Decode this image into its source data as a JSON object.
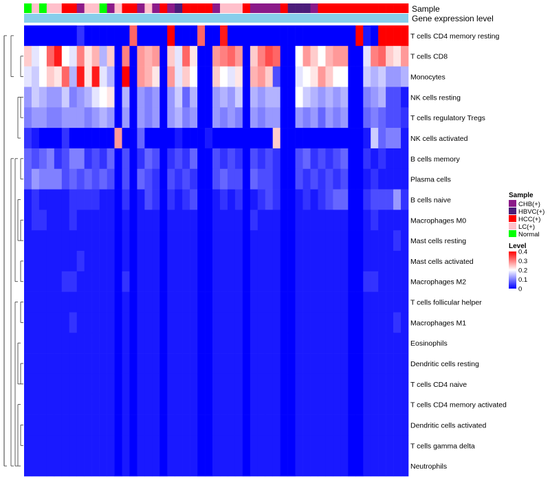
{
  "chart_data": {
    "type": "heatmap",
    "title": "",
    "n_samples": 51,
    "annotation_tracks": [
      {
        "name": "Sample",
        "values": [
          "Normal",
          "LC(+)",
          "Normal",
          "LC(+)",
          "LC(+)",
          "HCC(+)",
          "HCC(+)",
          "CHB(+)",
          "LC(+)",
          "LC(+)",
          "Normal",
          "CHB(+)",
          "LC(+)",
          "HCC(+)",
          "HCC(+)",
          "CHB(+)",
          "LC(+)",
          "CHB(+)",
          "HCC(+)",
          "CHB(+)",
          "HBVC(+)",
          "HCC(+)",
          "HCC(+)",
          "HCC(+)",
          "HCC(+)",
          "CHB(+)",
          "LC(+)",
          "LC(+)",
          "LC(+)",
          "HCC(+)",
          "CHB(+)",
          "CHB(+)",
          "CHB(+)",
          "CHB(+)",
          "HCC(+)",
          "HBVC(+)",
          "HBVC(+)",
          "HBVC(+)",
          "CHB(+)",
          "HCC(+)",
          "HCC(+)",
          "HCC(+)",
          "HCC(+)",
          "HCC(+)",
          "HCC(+)",
          "HCC(+)",
          "HCC(+)",
          "HCC(+)",
          "HCC(+)",
          "HCC(+)",
          "HCC(+)"
        ]
      },
      {
        "name": "Gene expression level",
        "values": "uniform"
      }
    ],
    "rows": [
      "T cells CD4 memory resting",
      "T cells CD8",
      "Monocytes",
      "NK cells resting",
      "T cells regulatory  Tregs",
      "NK cells activated",
      "B cells memory",
      "Plasma cells",
      "B cells naive",
      "Macrophages M0",
      "Mast cells resting",
      "Mast cells activated",
      "Macrophages M2",
      "T cells follicular helper",
      "Macrophages M1",
      "Eosinophils",
      "Dendritic cells resting",
      "T cells CD4 naive",
      "T cells CD4 memory activated",
      "Dendritic cells activated",
      "T cells gamma delta",
      "Neutrophils"
    ],
    "values": [
      [
        0,
        0,
        0,
        0,
        0,
        0,
        0,
        0.04,
        0,
        0,
        0,
        0,
        0,
        0,
        0.32,
        0,
        0,
        0,
        0,
        0.4,
        0,
        0,
        0,
        0.32,
        0,
        0,
        0.38,
        0,
        0,
        0,
        0,
        0,
        0,
        0,
        0,
        0,
        0,
        0,
        0,
        0,
        0,
        0,
        0,
        0,
        0.4,
        0.02,
        0,
        0.4,
        0.4,
        0.4,
        0.4
      ],
      [
        0.24,
        0.18,
        0.2,
        0.32,
        0.38,
        0.2,
        0.18,
        0.3,
        0.22,
        0.26,
        0.14,
        0.24,
        0,
        0.3,
        0,
        0.28,
        0.26,
        0.28,
        0,
        0.24,
        0.18,
        0.32,
        0.22,
        0,
        0,
        0.28,
        0.3,
        0.32,
        0.28,
        0,
        0.24,
        0.3,
        0.34,
        0.32,
        0,
        0,
        0.2,
        0.28,
        0.24,
        0.2,
        0.26,
        0.28,
        0.28,
        0,
        0,
        0.18,
        0.3,
        0.32,
        0.24,
        0.22,
        0.28
      ],
      [
        0.18,
        0.16,
        0.2,
        0.24,
        0.22,
        0.32,
        0.14,
        0.38,
        0.22,
        0.38,
        0.18,
        0.14,
        0,
        0.42,
        0,
        0.28,
        0.26,
        0.22,
        0,
        0.28,
        0.18,
        0.24,
        0.2,
        0,
        0,
        0.24,
        0.2,
        0.18,
        0.22,
        0,
        0.26,
        0.28,
        0.24,
        0.06,
        0,
        0,
        0.18,
        0.2,
        0.22,
        0.28,
        0.24,
        0.2,
        0.2,
        0,
        0,
        0.16,
        0.14,
        0.16,
        0.12,
        0.12,
        0.14
      ],
      [
        0.12,
        0.16,
        0.14,
        0.12,
        0.12,
        0.16,
        0.1,
        0.12,
        0.14,
        0.18,
        0.2,
        0.22,
        0,
        0.14,
        0,
        0.12,
        0.1,
        0.12,
        0,
        0.12,
        0.16,
        0.08,
        0.14,
        0,
        0,
        0.12,
        0.14,
        0.12,
        0.16,
        0,
        0.14,
        0.12,
        0.14,
        0.14,
        0,
        0,
        0.2,
        0.16,
        0.14,
        0.12,
        0.14,
        0.12,
        0.14,
        0,
        0,
        0.1,
        0.12,
        0.14,
        0.06,
        0.06,
        0.02
      ],
      [
        0.1,
        0.12,
        0.12,
        0.1,
        0.1,
        0.12,
        0.12,
        0.12,
        0.1,
        0.12,
        0.14,
        0.12,
        0,
        0.12,
        0,
        0.12,
        0.1,
        0.12,
        0,
        0.12,
        0.14,
        0.1,
        0.12,
        0,
        0,
        0.12,
        0.1,
        0.12,
        0.1,
        0,
        0.12,
        0.1,
        0.12,
        0.12,
        0,
        0,
        0.12,
        0.1,
        0.12,
        0.08,
        0.12,
        0.1,
        0.12,
        0,
        0,
        0.08,
        0.1,
        0.08,
        0.06,
        0.06,
        0.04
      ],
      [
        0.04,
        0.02,
        0,
        0,
        0,
        0.04,
        0,
        0,
        0,
        0,
        0,
        0,
        0.28,
        0,
        0,
        0.08,
        0,
        0,
        0,
        0,
        0.02,
        0,
        0,
        0,
        0.02,
        0,
        0,
        0,
        0,
        0,
        0,
        0,
        0,
        0.24,
        0,
        0,
        0,
        0,
        0,
        0,
        0,
        0,
        0,
        0,
        0,
        0.02,
        0.16,
        0.08,
        0.1,
        0.1,
        0.02
      ],
      [
        0.08,
        0.06,
        0.08,
        0.1,
        0.04,
        0.06,
        0.1,
        0.1,
        0.04,
        0.06,
        0.04,
        0.08,
        0,
        0.06,
        0,
        0.04,
        0.08,
        0.06,
        0,
        0.04,
        0.06,
        0.04,
        0.08,
        0,
        0,
        0.06,
        0.04,
        0.06,
        0.04,
        0,
        0.06,
        0.04,
        0.06,
        0.04,
        0,
        0,
        0.06,
        0.08,
        0.04,
        0.06,
        0.04,
        0.06,
        0.08,
        0,
        0,
        0.04,
        0.02,
        0.04,
        0.02,
        0.02,
        0.02
      ],
      [
        0.08,
        0.12,
        0.1,
        0.1,
        0.1,
        0.06,
        0.08,
        0.06,
        0.08,
        0.06,
        0.08,
        0.06,
        0,
        0.06,
        0,
        0.08,
        0.06,
        0.04,
        0,
        0.06,
        0.04,
        0.06,
        0.04,
        0,
        0,
        0.06,
        0.08,
        0.06,
        0.06,
        0,
        0.08,
        0.06,
        0.06,
        0.04,
        0,
        0,
        0.06,
        0.04,
        0.06,
        0.04,
        0.06,
        0.04,
        0.06,
        0,
        0,
        0.02,
        0.04,
        0.02,
        0.02,
        0.02,
        0.02
      ],
      [
        0.02,
        0.04,
        0.02,
        0.02,
        0.02,
        0.02,
        0.04,
        0.04,
        0.04,
        0.04,
        0.02,
        0.02,
        0,
        0.04,
        0,
        0.02,
        0.06,
        0.04,
        0,
        0.04,
        0.02,
        0.04,
        0.06,
        0,
        0,
        0.02,
        0.04,
        0.02,
        0.04,
        0,
        0.02,
        0.04,
        0.06,
        0.04,
        0,
        0,
        0.02,
        0.04,
        0.02,
        0.04,
        0.06,
        0.08,
        0.08,
        0,
        0,
        0.04,
        0.06,
        0.06,
        0.06,
        0.12,
        0.04
      ],
      [
        0.02,
        0.04,
        0.04,
        0.02,
        0.02,
        0.02,
        0.04,
        0.02,
        0.02,
        0.02,
        0.02,
        0.02,
        0,
        0.02,
        0,
        0.02,
        0.02,
        0.02,
        0,
        0.02,
        0.02,
        0.02,
        0.02,
        0,
        0,
        0.02,
        0.02,
        0.02,
        0.02,
        0,
        0.04,
        0.02,
        0.02,
        0.02,
        0,
        0,
        0.02,
        0.02,
        0.02,
        0.02,
        0.02,
        0.02,
        0.02,
        0,
        0,
        0.02,
        0.04,
        0.02,
        0.02,
        0.02,
        0.02
      ],
      [
        0.02,
        0.02,
        0.02,
        0.02,
        0.02,
        0.02,
        0.02,
        0.02,
        0.02,
        0.02,
        0.02,
        0.02,
        0,
        0.02,
        0,
        0.02,
        0.02,
        0.02,
        0,
        0.02,
        0.02,
        0.02,
        0.02,
        0,
        0,
        0.02,
        0.02,
        0.02,
        0.02,
        0,
        0.02,
        0.02,
        0.02,
        0.02,
        0,
        0,
        0.02,
        0.02,
        0.02,
        0.02,
        0.02,
        0.02,
        0.02,
        0,
        0,
        0.02,
        0.02,
        0.02,
        0.02,
        0.04,
        0.02
      ],
      [
        0.02,
        0.02,
        0.02,
        0.02,
        0.02,
        0.02,
        0.02,
        0.04,
        0.02,
        0.02,
        0.02,
        0.02,
        0,
        0.02,
        0,
        0.02,
        0.02,
        0.02,
        0,
        0.02,
        0.02,
        0.02,
        0.02,
        0,
        0,
        0.02,
        0.02,
        0.02,
        0.02,
        0,
        0.02,
        0.02,
        0.02,
        0.02,
        0,
        0,
        0.02,
        0.02,
        0.02,
        0.02,
        0.02,
        0.02,
        0.02,
        0,
        0,
        0.02,
        0.02,
        0.02,
        0.02,
        0.02,
        0.02
      ],
      [
        0.02,
        0.02,
        0.02,
        0.02,
        0.02,
        0.04,
        0.04,
        0.02,
        0.02,
        0.02,
        0.02,
        0.02,
        0,
        0.04,
        0,
        0.02,
        0.02,
        0.02,
        0,
        0.02,
        0.02,
        0.02,
        0.02,
        0,
        0,
        0.02,
        0.02,
        0.02,
        0.02,
        0,
        0.02,
        0.02,
        0.02,
        0.02,
        0,
        0,
        0.02,
        0.02,
        0.02,
        0.02,
        0.02,
        0.02,
        0.02,
        0,
        0,
        0.04,
        0.04,
        0.02,
        0.02,
        0.02,
        0.02
      ],
      [
        0.02,
        0.02,
        0.02,
        0.02,
        0.02,
        0.02,
        0.02,
        0.02,
        0.02,
        0.02,
        0.02,
        0.02,
        0,
        0.02,
        0,
        0.02,
        0.02,
        0.02,
        0,
        0.02,
        0.02,
        0.02,
        0.02,
        0,
        0,
        0.02,
        0.02,
        0.02,
        0.02,
        0,
        0.02,
        0.02,
        0.02,
        0.02,
        0,
        0,
        0.02,
        0.02,
        0.02,
        0.02,
        0.02,
        0.02,
        0.02,
        0,
        0,
        0.02,
        0.02,
        0.02,
        0.02,
        0.02,
        0.02
      ],
      [
        0.02,
        0.02,
        0.02,
        0.02,
        0.02,
        0.02,
        0.04,
        0.02,
        0.02,
        0.02,
        0.02,
        0.02,
        0,
        0.02,
        0,
        0.02,
        0.02,
        0.02,
        0,
        0.02,
        0.02,
        0.02,
        0.02,
        0,
        0,
        0.02,
        0.02,
        0.02,
        0.02,
        0,
        0.02,
        0.02,
        0.02,
        0.02,
        0,
        0,
        0.02,
        0.02,
        0.02,
        0.02,
        0.02,
        0.02,
        0.02,
        0,
        0,
        0.02,
        0.02,
        0.02,
        0.02,
        0.04,
        0.02
      ],
      [
        0.02,
        0.02,
        0.02,
        0.02,
        0.02,
        0.02,
        0.02,
        0.02,
        0.02,
        0.02,
        0.02,
        0.02,
        0,
        0.02,
        0,
        0.02,
        0.02,
        0.02,
        0,
        0.02,
        0.02,
        0.02,
        0.02,
        0,
        0,
        0.02,
        0.02,
        0.02,
        0.02,
        0,
        0.02,
        0.02,
        0.02,
        0.02,
        0,
        0,
        0.02,
        0.02,
        0.02,
        0.02,
        0.02,
        0.02,
        0.02,
        0,
        0,
        0.02,
        0.02,
        0.02,
        0.02,
        0.02,
        0.02
      ],
      [
        0.02,
        0.02,
        0.02,
        0.02,
        0.02,
        0.02,
        0.02,
        0.02,
        0.02,
        0.02,
        0.02,
        0.02,
        0,
        0.02,
        0,
        0.02,
        0.02,
        0.02,
        0,
        0.02,
        0.02,
        0.02,
        0.02,
        0,
        0,
        0.02,
        0.02,
        0.02,
        0.02,
        0,
        0.02,
        0.02,
        0.02,
        0.02,
        0,
        0,
        0.02,
        0.02,
        0.02,
        0.02,
        0.02,
        0.02,
        0.02,
        0,
        0,
        0.02,
        0.02,
        0.02,
        0.02,
        0.02,
        0.02
      ],
      [
        0.02,
        0.02,
        0.02,
        0.02,
        0.02,
        0.02,
        0.02,
        0.02,
        0.02,
        0.02,
        0.02,
        0.02,
        0,
        0.02,
        0,
        0.02,
        0.02,
        0.02,
        0,
        0.02,
        0.02,
        0.02,
        0.02,
        0,
        0,
        0.02,
        0.02,
        0.02,
        0.02,
        0,
        0.02,
        0.02,
        0.02,
        0.02,
        0,
        0,
        0.02,
        0.02,
        0.02,
        0.02,
        0.02,
        0.02,
        0.02,
        0,
        0,
        0.02,
        0.02,
        0.02,
        0.02,
        0.02,
        0.02
      ],
      [
        0.02,
        0.02,
        0.02,
        0.02,
        0.02,
        0.02,
        0.02,
        0.02,
        0.02,
        0.02,
        0.02,
        0.02,
        0,
        0.02,
        0,
        0.02,
        0.02,
        0.02,
        0,
        0.02,
        0.02,
        0.02,
        0.02,
        0,
        0,
        0.02,
        0.02,
        0.02,
        0.02,
        0,
        0.02,
        0.02,
        0.02,
        0.02,
        0,
        0,
        0.02,
        0.02,
        0.02,
        0.02,
        0.02,
        0.02,
        0.02,
        0,
        0,
        0.02,
        0.02,
        0.02,
        0.02,
        0.02,
        0.02
      ],
      [
        0.02,
        0.02,
        0.02,
        0.02,
        0.02,
        0.02,
        0.02,
        0.02,
        0.02,
        0.02,
        0.02,
        0.02,
        0,
        0.02,
        0,
        0.02,
        0.02,
        0.02,
        0,
        0.02,
        0.02,
        0.02,
        0.02,
        0,
        0,
        0.02,
        0.02,
        0.02,
        0.02,
        0,
        0.02,
        0.02,
        0.02,
        0.02,
        0,
        0,
        0.02,
        0.02,
        0.02,
        0.02,
        0.02,
        0.02,
        0.02,
        0,
        0,
        0.02,
        0.02,
        0.02,
        0.02,
        0.02,
        0.02
      ],
      [
        0.02,
        0.02,
        0.02,
        0.02,
        0.02,
        0.02,
        0.02,
        0.02,
        0.02,
        0.02,
        0.02,
        0.02,
        0,
        0.02,
        0,
        0.02,
        0.02,
        0.02,
        0,
        0.02,
        0.02,
        0.02,
        0.02,
        0,
        0,
        0.02,
        0.02,
        0.02,
        0.02,
        0,
        0.02,
        0.02,
        0.02,
        0.02,
        0,
        0,
        0.02,
        0.02,
        0.02,
        0.02,
        0.02,
        0.02,
        0.02,
        0,
        0,
        0.02,
        0.02,
        0.02,
        0.02,
        0.02,
        0.02
      ],
      [
        0.02,
        0.02,
        0.02,
        0.02,
        0.02,
        0.02,
        0.02,
        0.02,
        0.02,
        0.02,
        0.02,
        0.02,
        0,
        0.02,
        0,
        0.02,
        0.02,
        0.02,
        0,
        0.02,
        0.02,
        0.02,
        0.02,
        0,
        0,
        0.02,
        0.02,
        0.02,
        0.02,
        0,
        0.02,
        0.02,
        0.02,
        0.02,
        0,
        0,
        0.02,
        0.02,
        0.02,
        0.02,
        0.02,
        0.02,
        0.02,
        0,
        0,
        0.02,
        0.02,
        0.02,
        0.02,
        0.02,
        0.02
      ]
    ],
    "color_scale": {
      "min": 0,
      "max": 0.4,
      "low": "#0000ff",
      "mid": "#ffffff",
      "high": "#ff0000",
      "mid_value": 0.2
    },
    "legend": {
      "sample_title": "Sample",
      "sample_items": [
        {
          "label": "CHB(+)",
          "color": "#8b1a89"
        },
        {
          "label": "HBVC(+)",
          "color": "#4b1c7a"
        },
        {
          "label": "HCC(+)",
          "color": "#ff0000"
        },
        {
          "label": "LC(+)",
          "color": "#ffc0cb"
        },
        {
          "label": "Normal",
          "color": "#00ff00"
        }
      ],
      "level_title": "Level",
      "level_ticks": [
        "0.4",
        "0.3",
        "0.2",
        "0.1",
        "0"
      ]
    },
    "gene_expression_color": "#87ceeb"
  }
}
